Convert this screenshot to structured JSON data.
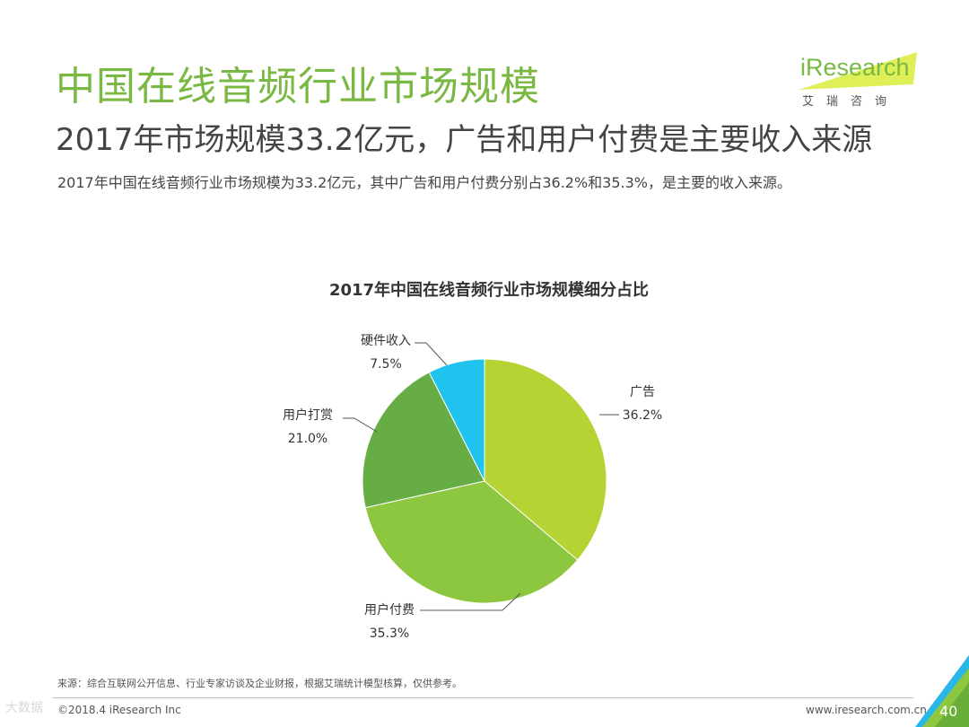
{
  "slide": {
    "title": "中国在线音频行业市场规模",
    "subtitle": "2017年市场规模33.2亿元，广告和用户付费是主要收入来源",
    "description": "2017年中国在线音频行业市场规模为33.2亿元，其中广告和用户付费分别占36.2%和35.3%，是主要的收入来源。"
  },
  "logo": {
    "name": "iResearch",
    "sub": "艾瑞咨询"
  },
  "chart_data": {
    "type": "pie",
    "title": "2017年中国在线音频行业市场规模细分占比",
    "categories": [
      "广告",
      "用户付费",
      "用户打赏",
      "硬件收入"
    ],
    "values": [
      36.2,
      35.3,
      21.0,
      7.5
    ],
    "value_labels": [
      "36.2%",
      "35.3%",
      "21.0%",
      "7.5%"
    ],
    "colors": [
      "#b5d334",
      "#8dc63f",
      "#67ad45",
      "#1fc3ee"
    ],
    "unit": "%"
  },
  "footer": {
    "source": "来源：综合互联网公开信息、行业专家访谈及企业财报，根据艾瑞统计模型核算，仅供参考。",
    "copyright": "©2018.4 iResearch Inc",
    "website": "www.iresearch.com.cn",
    "page_number": "40",
    "watermark": "大数据"
  }
}
